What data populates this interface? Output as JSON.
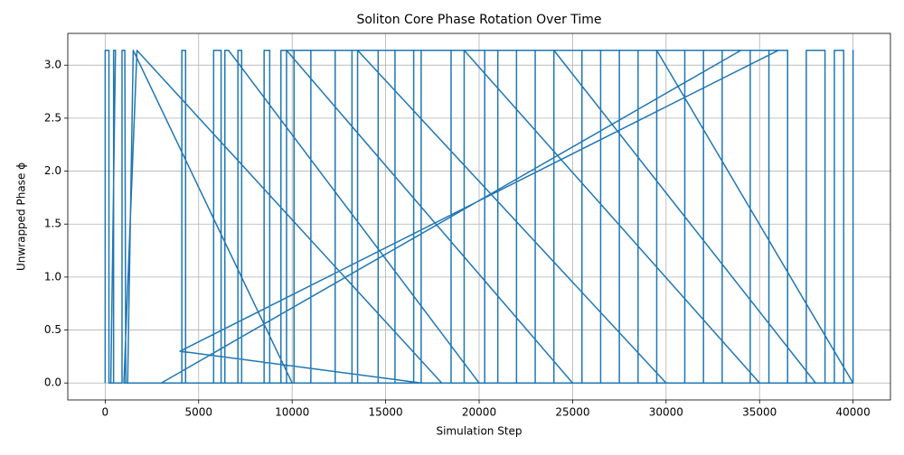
{
  "chart_data": {
    "type": "line",
    "title": "Soliton Core Phase Rotation Over Time",
    "xlabel": "Simulation Step",
    "ylabel": "Unwrapped Phase ϕ",
    "color": "#1f77b4",
    "grid": true,
    "xlim": [
      -2000,
      42000
    ],
    "ylim": [
      -0.16,
      3.3
    ],
    "xticks": [
      0,
      5000,
      10000,
      15000,
      20000,
      25000,
      30000,
      35000,
      40000
    ],
    "yticks": [
      {
        "value": 0,
        "label": "0.0"
      },
      0.5,
      {
        "value": 1,
        "label": "1.0"
      },
      1.5,
      {
        "value": 2,
        "label": "2.0"
      },
      2.5,
      {
        "value": 3,
        "label": "3.0"
      }
    ],
    "x": [
      0,
      0,
      200,
      200,
      450,
      450,
      550,
      300,
      900,
      900,
      1050,
      1100,
      1200,
      1500,
      10000,
      4100,
      4100,
      4300,
      4300,
      1000,
      1700,
      18000,
      5800,
      5800,
      6200,
      6200,
      6400,
      6400,
      6600,
      20000,
      7100,
      7100,
      7300,
      7300,
      8500,
      8500,
      8800,
      8800,
      3000,
      34000,
      9400,
      9400,
      9700,
      9700,
      25000,
      10100,
      10100,
      11000,
      11000,
      12300,
      12300,
      13200,
      13200,
      13500,
      13500,
      30000,
      14600,
      14600,
      15500,
      15500,
      16500,
      16500,
      16900,
      16900,
      4000,
      36000,
      18500,
      18500,
      19200,
      19200,
      35000,
      20300,
      20300,
      21000,
      21000,
      22000,
      22000,
      23000,
      23000,
      24000,
      24000,
      38000,
      25500,
      25500,
      26500,
      26500,
      27500,
      27500,
      28500,
      28500,
      29500,
      29500,
      40000,
      31000,
      31000,
      32000,
      32000,
      33000,
      33000,
      34500,
      34500,
      35500,
      35500,
      36500,
      36500,
      37500,
      37500,
      38500,
      38500,
      39000,
      39000,
      39500,
      39500,
      40000,
      40000,
      40000
    ],
    "values": [
      0,
      3.14,
      3.14,
      0,
      0,
      3.14,
      3.14,
      0,
      0,
      3.14,
      3.14,
      0,
      0,
      3.14,
      0,
      0,
      3.14,
      3.14,
      0,
      0,
      3.14,
      0,
      0,
      3.14,
      3.14,
      0,
      0,
      3.14,
      3.14,
      0,
      0,
      3.14,
      3.14,
      0,
      0,
      3.14,
      3.14,
      0,
      0,
      3.14,
      3.14,
      0,
      0,
      3.14,
      0,
      0,
      3.14,
      3.14,
      0,
      0,
      3.14,
      3.14,
      0,
      0,
      3.14,
      0,
      0,
      3.14,
      3.14,
      0,
      0,
      3.14,
      3.14,
      0,
      0.3,
      3.14,
      3.14,
      0,
      0,
      3.14,
      0,
      0,
      3.14,
      3.14,
      0,
      0,
      3.14,
      3.14,
      0,
      0,
      3.14,
      0,
      0,
      3.14,
      3.14,
      0,
      0,
      3.14,
      3.14,
      0,
      0,
      3.14,
      0,
      0,
      3.14,
      3.14,
      0,
      0,
      3.14,
      3.14,
      0,
      0,
      3.14,
      3.14,
      0,
      0,
      3.14,
      3.14,
      0,
      0,
      3.14,
      3.14,
      0,
      0,
      3.14,
      0
    ]
  }
}
